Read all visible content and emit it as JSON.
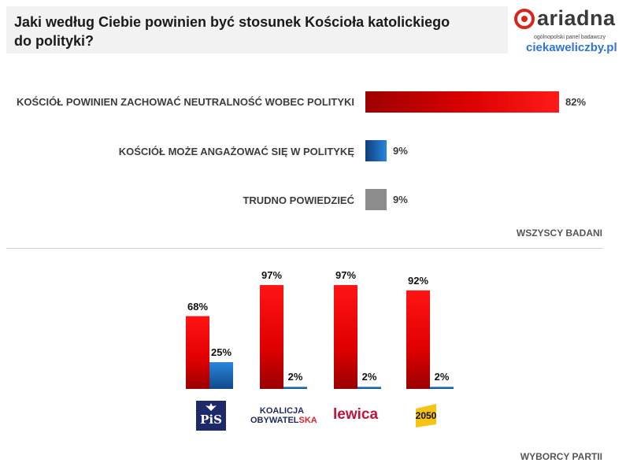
{
  "header": {
    "title": "Jaki według Ciebie powinien być stosunek Kościoła katolickiego do polityki?"
  },
  "logo": {
    "brand": "ariadna",
    "tagline": "ogólnopolski panel badawczy",
    "site": "ciekaweliczby.pl"
  },
  "colors": {
    "red": "#e00000",
    "blue": "#1f77c9",
    "gray": "#8c8c8c"
  },
  "chart_data": [
    {
      "type": "bar",
      "orientation": "horizontal",
      "section_label": "WSZYSCY BADANI",
      "categories": [
        "KOŚCIÓŁ POWINIEN ZACHOWAĆ NEUTRALNOŚĆ WOBEC POLITYKI",
        "KOŚCIÓŁ MOŻE ANGAŻOWAĆ SIĘ W POLITYKĘ",
        "TRUDNO POWIEDZIEĆ"
      ],
      "values": [
        82,
        9,
        9
      ],
      "value_labels": [
        "82%",
        "9%",
        "9%"
      ],
      "colors": [
        "red",
        "blue",
        "gray"
      ]
    },
    {
      "type": "bar",
      "orientation": "vertical",
      "section_label": "WYBORCY PARTII",
      "categories": [
        "PiS",
        "Koalicja Obywatelska",
        "Lewica",
        "2050"
      ],
      "party_logos": [
        {
          "text": "PiS"
        },
        {
          "line1": "KOALICJA",
          "line2_a": "OBYWATEL",
          "line2_b": "SKA"
        },
        {
          "text": "lewica"
        },
        {
          "text": "2050"
        }
      ],
      "series": [
        {
          "values": [
            68,
            97,
            97,
            92
          ],
          "labels": [
            "68%",
            "97%",
            "97%",
            "92%"
          ],
          "color": "red"
        },
        {
          "values": [
            25,
            2,
            2,
            2
          ],
          "labels": [
            "25%",
            "2%",
            "2%",
            "2%"
          ],
          "color": "blue"
        }
      ]
    }
  ]
}
